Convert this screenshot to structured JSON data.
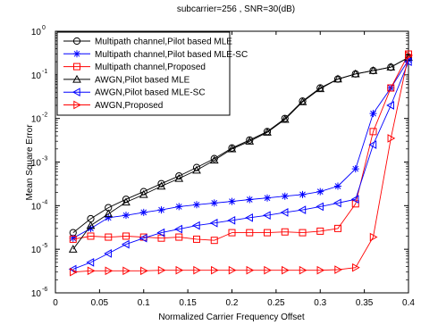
{
  "chart_data": {
    "type": "line",
    "title": "subcarrier=256   ,   SNR=30(dB)",
    "xlabel": "Normalized Carrier Frequency Offset",
    "ylabel": "Mean Square Error",
    "xlim": [
      0,
      0.4
    ],
    "ylim": [
      1e-06,
      1
    ],
    "yscale": "log",
    "grid": false,
    "legend_position": "top-left",
    "x_ticks": [
      "0",
      "0.05",
      "0.1",
      "0.15",
      "0.2",
      "0.25",
      "0.3",
      "0.35",
      "0.4"
    ],
    "y_ticks": [
      {
        "base": "10",
        "exp": "-6"
      },
      {
        "base": "10",
        "exp": "-5"
      },
      {
        "base": "10",
        "exp": "-4"
      },
      {
        "base": "10",
        "exp": "-3"
      },
      {
        "base": "10",
        "exp": "-2"
      },
      {
        "base": "10",
        "exp": "-1"
      },
      {
        "base": "10",
        "exp": "0"
      }
    ],
    "x": [
      0.02,
      0.04,
      0.06,
      0.08,
      0.1,
      0.12,
      0.14,
      0.16,
      0.18,
      0.2,
      0.22,
      0.24,
      0.26,
      0.28,
      0.3,
      0.32,
      0.34,
      0.36,
      0.38,
      0.4
    ],
    "series": [
      {
        "name": "Multipath channel,Pilot based MLE",
        "color": "#000000",
        "marker": "circle",
        "values": [
          2.4e-05,
          5e-05,
          9e-05,
          0.00014,
          0.00021,
          0.00032,
          0.00048,
          0.00075,
          0.0012,
          0.0021,
          0.0032,
          0.005,
          0.01,
          0.025,
          0.05,
          0.08,
          0.105,
          0.125,
          0.15,
          0.25
        ]
      },
      {
        "name": "Multipath channel,Pilot based MLE-SC",
        "color": "#0000ff",
        "marker": "star",
        "values": [
          1.8e-05,
          3e-05,
          5.3e-05,
          6e-05,
          7e-05,
          8e-05,
          9.5e-05,
          0.000105,
          0.000115,
          0.000125,
          0.000138,
          0.00015,
          0.000165,
          0.00018,
          0.00021,
          0.00028,
          0.0007,
          0.013,
          0.05,
          0.22
        ]
      },
      {
        "name": "Multipath channel,Proposed",
        "color": "#ff0000",
        "marker": "square",
        "values": [
          1.7e-05,
          2e-05,
          1.9e-05,
          2e-05,
          1.9e-05,
          1.8e-05,
          1.9e-05,
          1.7e-05,
          1.6e-05,
          2.4e-05,
          2.4e-05,
          2.4e-05,
          2.5e-05,
          2.4e-05,
          2.6e-05,
          3e-05,
          0.00011,
          0.005,
          0.05,
          0.3
        ]
      },
      {
        "name": "AWGN,Pilot based MLE",
        "color": "#000000",
        "marker": "triangle-up",
        "values": [
          1e-05,
          3.5e-05,
          6.5e-05,
          0.00012,
          0.00018,
          0.00028,
          0.00042,
          0.00065,
          0.0011,
          0.002,
          0.003,
          0.0048,
          0.0095,
          0.024,
          0.048,
          0.08,
          0.105,
          0.125,
          0.15,
          0.25
        ]
      },
      {
        "name": "AWGN,Pilot based MLE-SC",
        "color": "#0000ff",
        "marker": "triangle-left",
        "values": [
          3.5e-06,
          5e-06,
          8e-06,
          1.3e-05,
          1.8e-05,
          2.4e-05,
          2.9e-05,
          3.5e-05,
          4e-05,
          4.6e-05,
          5.3e-05,
          6e-05,
          7e-05,
          8e-05,
          9.5e-05,
          0.000115,
          0.00014,
          0.0025,
          0.02,
          0.2
        ]
      },
      {
        "name": "AWGN,Proposed",
        "color": "#ff0000",
        "marker": "triangle-right",
        "values": [
          3e-06,
          3.2e-06,
          3.2e-06,
          3.2e-06,
          3.2e-06,
          3.3e-06,
          3.3e-06,
          3.3e-06,
          3.3e-06,
          3.3e-06,
          3.3e-06,
          3.3e-06,
          3.3e-06,
          3.3e-06,
          3.3e-06,
          3.4e-06,
          3.8e-06,
          1.9e-05,
          0.0035,
          0.28
        ]
      }
    ]
  }
}
